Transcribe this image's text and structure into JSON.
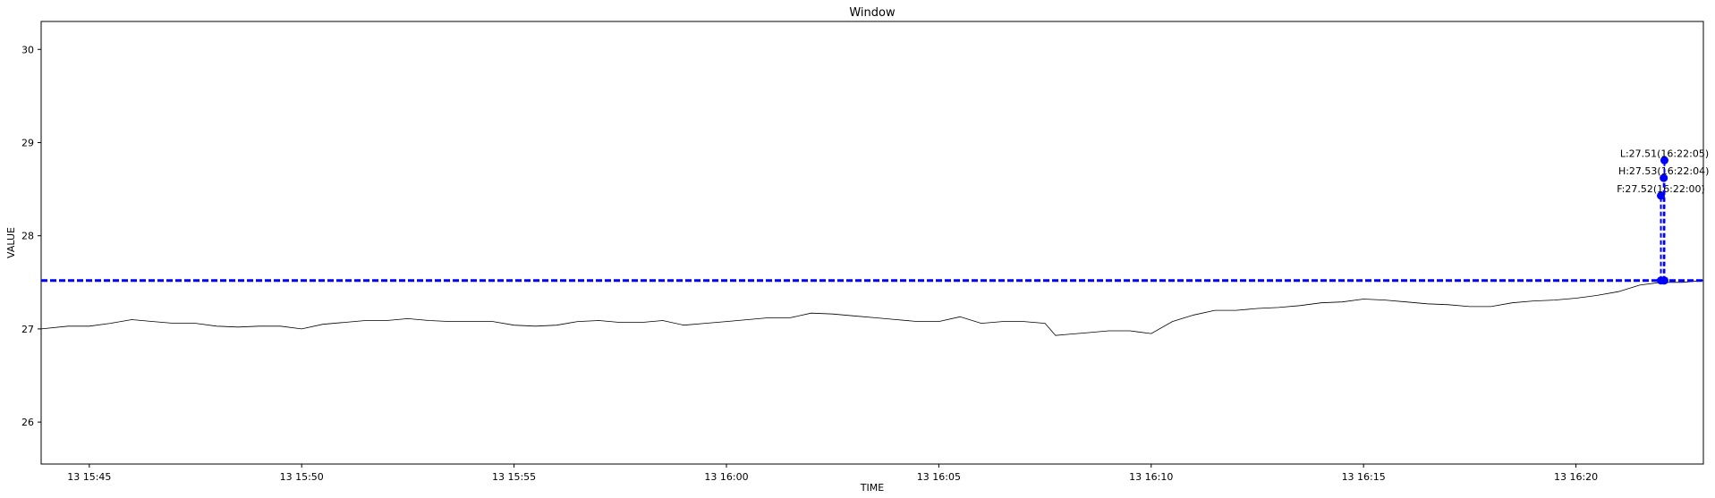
{
  "chart_data": {
    "type": "line",
    "title": "Window",
    "xlabel": "TIME",
    "ylabel": "VALUE",
    "ylim": [
      25.55,
      30.3
    ],
    "xlim": [
      "13 15:43:52",
      "13 16:23:00"
    ],
    "x_ticks": [
      "13 15:45",
      "13 15:50",
      "13 15:55",
      "13 16:00",
      "13 16:05",
      "13 16:10",
      "13 16:15",
      "13 16:20"
    ],
    "y_ticks": [
      26,
      27,
      28,
      29,
      30
    ],
    "grid": false,
    "series": [
      {
        "color": "#000000",
        "x": [
          "13 15:43:52",
          "13 15:44:30",
          "13 15:45:00",
          "13 15:45:30",
          "13 15:46:00",
          "13 15:46:30",
          "13 15:47:00",
          "13 15:47:30",
          "13 15:48:00",
          "13 15:48:30",
          "13 15:49:00",
          "13 15:49:30",
          "13 15:50:00",
          "13 15:50:30",
          "13 15:51:00",
          "13 15:51:30",
          "13 15:52:00",
          "13 15:52:30",
          "13 15:53:00",
          "13 15:53:30",
          "13 15:54:00",
          "13 15:54:30",
          "13 15:55:00",
          "13 15:55:30",
          "13 15:56:00",
          "13 15:56:30",
          "13 15:57:00",
          "13 15:57:30",
          "13 15:58:00",
          "13 15:58:30",
          "13 15:59:00",
          "13 15:59:30",
          "13 16:00:00",
          "13 16:00:30",
          "13 16:01:00",
          "13 16:01:30",
          "13 16:02:00",
          "13 16:02:30",
          "13 16:03:00",
          "13 16:03:30",
          "13 16:04:00",
          "13 16:04:30",
          "13 16:05:00",
          "13 16:05:30",
          "13 16:06:00",
          "13 16:06:30",
          "13 16:07:00",
          "13 16:07:30",
          "13 16:07:45",
          "13 16:08:00",
          "13 16:08:30",
          "13 16:09:00",
          "13 16:09:30",
          "13 16:10:00",
          "13 16:10:30",
          "13 16:11:00",
          "13 16:11:30",
          "13 16:12:00",
          "13 16:12:30",
          "13 16:13:00",
          "13 16:13:30",
          "13 16:14:00",
          "13 16:14:30",
          "13 16:15:00",
          "13 16:15:30",
          "13 16:16:00",
          "13 16:16:30",
          "13 16:17:00",
          "13 16:17:30",
          "13 16:18:00",
          "13 16:18:30",
          "13 16:19:00",
          "13 16:19:30",
          "13 16:20:00",
          "13 16:20:30",
          "13 16:21:00",
          "13 16:21:30",
          "13 16:22:00",
          "13 16:22:30",
          "13 16:23:00"
        ],
        "values": [
          27.0,
          27.03,
          27.03,
          27.06,
          27.1,
          27.08,
          27.06,
          27.06,
          27.03,
          27.02,
          27.03,
          27.03,
          27.0,
          27.05,
          27.07,
          27.09,
          27.09,
          27.11,
          27.09,
          27.08,
          27.08,
          27.08,
          27.04,
          27.03,
          27.04,
          27.08,
          27.09,
          27.07,
          27.07,
          27.09,
          27.04,
          27.06,
          27.08,
          27.1,
          27.12,
          27.12,
          27.17,
          27.16,
          27.14,
          27.12,
          27.1,
          27.08,
          27.08,
          27.13,
          27.06,
          27.08,
          27.08,
          27.06,
          26.93,
          26.94,
          26.96,
          26.98,
          26.98,
          26.95,
          27.08,
          27.15,
          27.2,
          27.2,
          27.22,
          27.23,
          27.25,
          27.28,
          27.29,
          27.32,
          27.31,
          27.29,
          27.27,
          27.26,
          27.24,
          27.24,
          27.28,
          27.3,
          27.31,
          27.33,
          27.36,
          27.4,
          27.47,
          27.5,
          27.5,
          27.52
        ]
      }
    ],
    "reference_lines": [
      {
        "type": "horizontal",
        "value": 27.52,
        "style": "dashed",
        "color": "#0000ff"
      }
    ],
    "annotations": [
      {
        "label": "F:27.52(16:22:00)",
        "x": "13 16:22:00",
        "y": 28.43,
        "base": 27.52,
        "color": "#0000ff"
      },
      {
        "label": "H:27.53(16:22:04)",
        "x": "13 16:22:04",
        "y": 28.62,
        "base": 27.52,
        "color": "#0000ff"
      },
      {
        "label": "L:27.51(16:22:05)",
        "x": "13 16:22:05",
        "y": 28.81,
        "base": 27.52,
        "color": "#0000ff"
      }
    ]
  }
}
